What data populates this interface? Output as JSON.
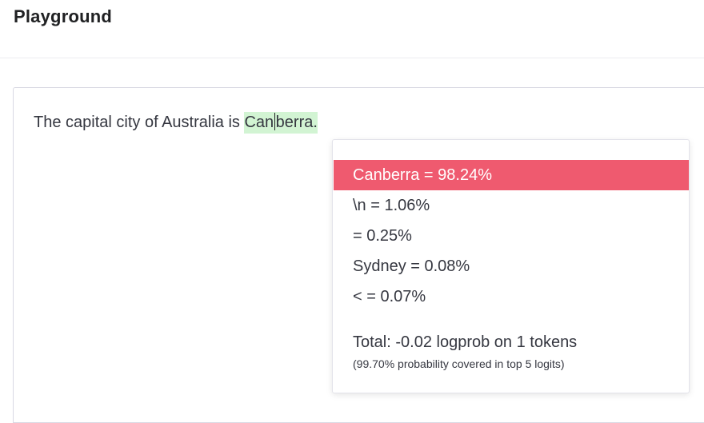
{
  "header": {
    "title": "Playground"
  },
  "editor": {
    "prompt_text": "The capital city of Australia is",
    "completion_before_caret": "Can",
    "completion_after_caret": "berra."
  },
  "logprobs_popover": {
    "items": [
      {
        "label": "Canberra = 98.24%",
        "selected": true
      },
      {
        "label": "\\n = 1.06%",
        "selected": false
      },
      {
        "label": " = 0.25%",
        "selected": false
      },
      {
        "label": "Sydney = 0.08%",
        "selected": false
      },
      {
        "label": "< = 0.07%",
        "selected": false
      }
    ],
    "total": "Total: -0.02 logprob on 1 tokens",
    "coverage": "(99.70% probability covered in top 5 logits)"
  },
  "colors": {
    "selected_row": "#ef5a6f",
    "completion_highlight": "#d2f4d3"
  }
}
